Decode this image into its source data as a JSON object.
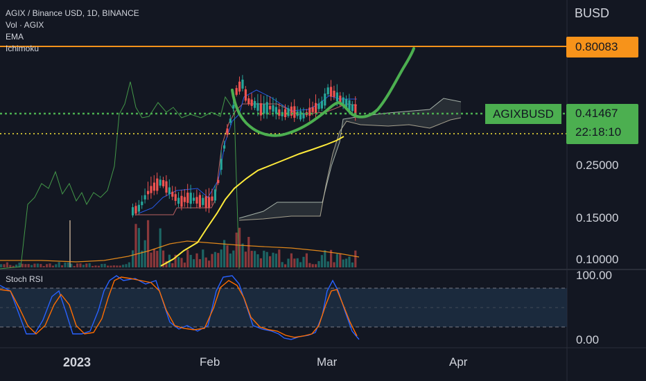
{
  "header": {
    "symbol_line": "AGIX / Binance USD, 1D, BINANCE",
    "indicators": [
      "Vol · AGIX",
      "EMA",
      "Ichimoku"
    ]
  },
  "currency": "BUSD",
  "price_scale": {
    "ticks": [
      "0.25000",
      "0.15000",
      "0.10000"
    ],
    "target_label": "0.80083",
    "last_price": "0.41467",
    "countdown": "22:18:10",
    "symbol_badge": "AGIXBUSD"
  },
  "rsi_pane": {
    "title": "Stoch RSI",
    "ticks": [
      "100.00",
      "0.00"
    ]
  },
  "time_axis": {
    "labels": [
      "2023",
      "Feb",
      "Mar",
      "Apr"
    ]
  },
  "colors": {
    "background": "#131722",
    "up": "#26a69a",
    "down": "#ef5350",
    "target_line": "#f7931a",
    "last_price": "#4caf50",
    "ema": "#ffeb3b",
    "hand_drawn": "#4caf50",
    "cloud": "#9aa89a",
    "stoch_k": "#2962ff",
    "stoch_d": "#ff6d00",
    "rsi_band": "#1e2f45"
  }
}
